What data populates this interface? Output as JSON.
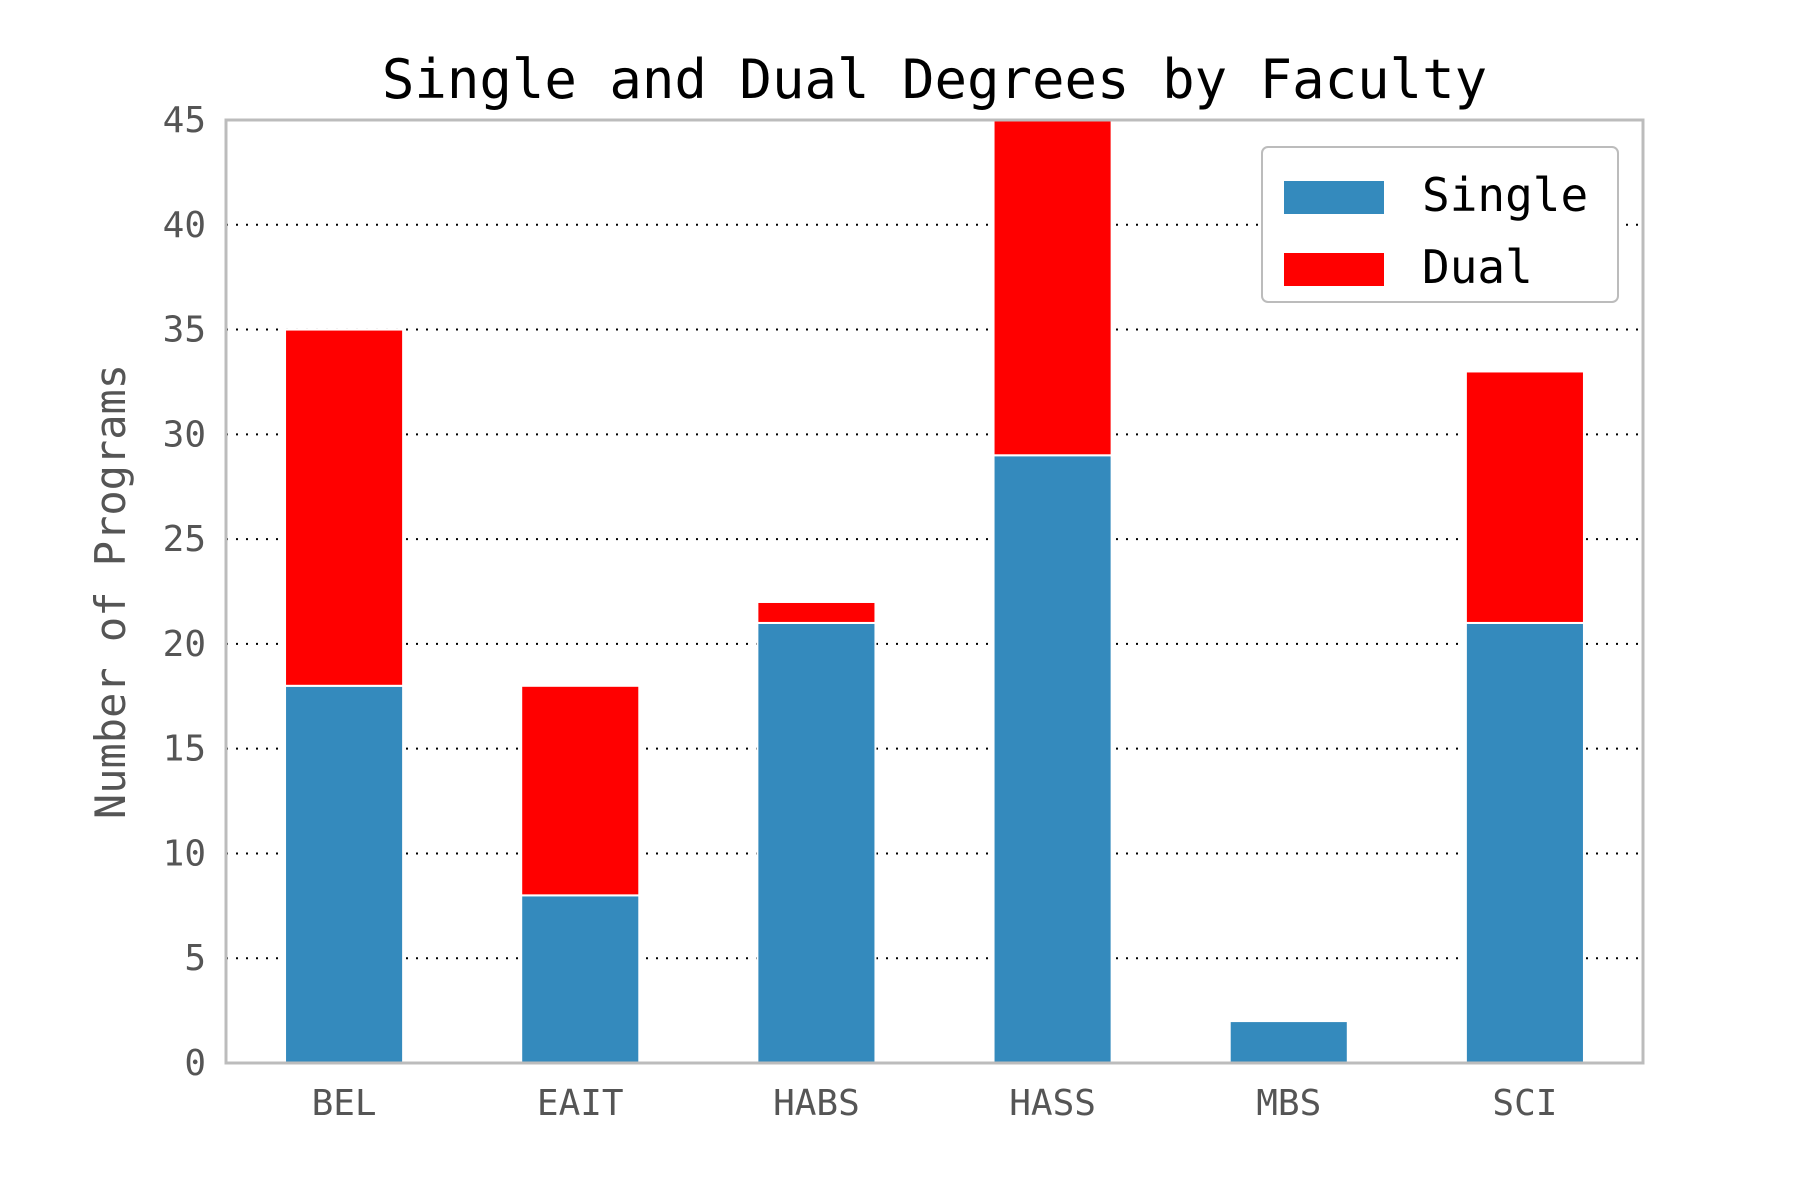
{
  "chart_data": {
    "type": "bar",
    "stacked": true,
    "title": "Single and Dual Degrees by Faculty",
    "xlabel": "",
    "ylabel": "Number of Programs",
    "categories": [
      "BEL",
      "EAIT",
      "HABS",
      "HASS",
      "MBS",
      "SCI"
    ],
    "series": [
      {
        "name": "Single",
        "values": [
          18,
          8,
          21,
          29,
          2,
          21
        ],
        "color": "#348abd"
      },
      {
        "name": "Dual",
        "values": [
          17,
          10,
          1,
          16,
          0,
          12
        ],
        "color": "#ff0000"
      }
    ],
    "ylim": [
      0,
      45
    ],
    "yticks": [
      "0",
      "5",
      "10",
      "15",
      "20",
      "25",
      "30",
      "35",
      "40",
      "45"
    ],
    "grid": "horizontal dotted",
    "legend": "top-right"
  }
}
